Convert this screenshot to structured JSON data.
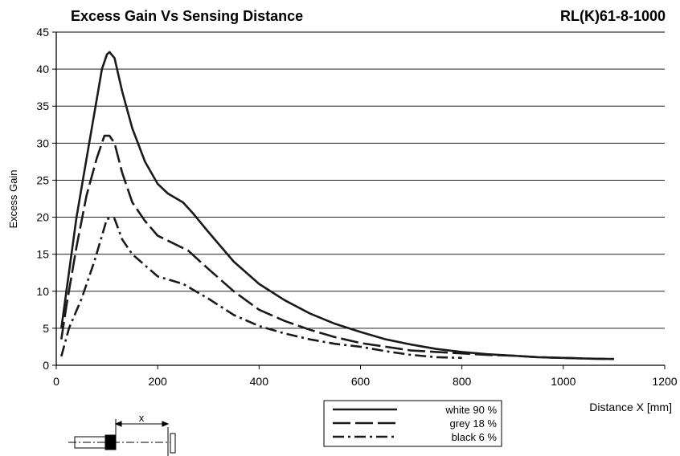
{
  "header": {
    "title": "Excess Gain Vs Sensing Distance",
    "model": "RL(K)61-8-1000"
  },
  "diagram": {
    "x_label": "x"
  },
  "chart_data": {
    "type": "line",
    "title": "Excess Gain Vs Sensing Distance",
    "xlabel": "Distance X [mm]",
    "ylabel": "Excess Gain",
    "xlim": [
      0,
      1200
    ],
    "ylim": [
      0,
      45
    ],
    "x_ticks": [
      0,
      200,
      400,
      600,
      800,
      1000,
      1200
    ],
    "y_ticks": [
      0,
      5,
      10,
      15,
      20,
      25,
      30,
      35,
      40,
      45
    ],
    "grid": "horizontal",
    "legend_position": "bottom-center",
    "series": [
      {
        "name": "white 90 %",
        "dash": "solid",
        "points": [
          [
            10,
            5
          ],
          [
            20,
            10
          ],
          [
            40,
            20
          ],
          [
            60,
            28
          ],
          [
            80,
            36
          ],
          [
            90,
            40
          ],
          [
            100,
            42
          ],
          [
            105,
            42.3
          ],
          [
            115,
            41.5
          ],
          [
            130,
            37
          ],
          [
            150,
            32
          ],
          [
            175,
            27.5
          ],
          [
            200,
            24.5
          ],
          [
            220,
            23.2
          ],
          [
            250,
            22
          ],
          [
            270,
            20.5
          ],
          [
            300,
            18
          ],
          [
            350,
            14
          ],
          [
            400,
            11
          ],
          [
            450,
            8.8
          ],
          [
            500,
            7
          ],
          [
            550,
            5.6
          ],
          [
            600,
            4.5
          ],
          [
            650,
            3.5
          ],
          [
            700,
            2.8
          ],
          [
            750,
            2.2
          ],
          [
            800,
            1.8
          ],
          [
            850,
            1.5
          ],
          [
            900,
            1.3
          ],
          [
            950,
            1.1
          ],
          [
            1000,
            1.0
          ],
          [
            1050,
            0.9
          ],
          [
            1100,
            0.85
          ]
        ]
      },
      {
        "name": "grey 18 %",
        "dash": "dash",
        "points": [
          [
            10,
            3.5
          ],
          [
            20,
            8
          ],
          [
            40,
            16
          ],
          [
            60,
            23
          ],
          [
            80,
            28
          ],
          [
            95,
            31
          ],
          [
            105,
            31
          ],
          [
            115,
            30
          ],
          [
            130,
            26
          ],
          [
            150,
            22
          ],
          [
            175,
            19.5
          ],
          [
            200,
            17.5
          ],
          [
            230,
            16.5
          ],
          [
            260,
            15.5
          ],
          [
            300,
            13
          ],
          [
            350,
            10
          ],
          [
            400,
            7.5
          ],
          [
            450,
            6
          ],
          [
            500,
            4.8
          ],
          [
            550,
            3.8
          ],
          [
            600,
            3.0
          ],
          [
            650,
            2.5
          ],
          [
            700,
            2.0
          ],
          [
            750,
            1.8
          ],
          [
            800,
            1.6
          ],
          [
            850,
            1.4
          ],
          [
            900,
            1.3
          ],
          [
            950,
            1.1
          ],
          [
            1000,
            1.0
          ],
          [
            1050,
            0.9
          ],
          [
            1100,
            0.85
          ]
        ]
      },
      {
        "name": "black 6 %",
        "dash": "dashdot",
        "points": [
          [
            10,
            1.2
          ],
          [
            25,
            5
          ],
          [
            50,
            9
          ],
          [
            75,
            14
          ],
          [
            100,
            19.8
          ],
          [
            115,
            19.8
          ],
          [
            130,
            17
          ],
          [
            150,
            15
          ],
          [
            175,
            13.5
          ],
          [
            200,
            12
          ],
          [
            225,
            11.5
          ],
          [
            250,
            11
          ],
          [
            300,
            9
          ],
          [
            350,
            6.8
          ],
          [
            400,
            5.3
          ],
          [
            450,
            4.3
          ],
          [
            500,
            3.5
          ],
          [
            550,
            2.9
          ],
          [
            600,
            2.5
          ],
          [
            650,
            1.9
          ],
          [
            700,
            1.4
          ],
          [
            750,
            1.1
          ],
          [
            800,
            1.0
          ]
        ]
      }
    ]
  }
}
